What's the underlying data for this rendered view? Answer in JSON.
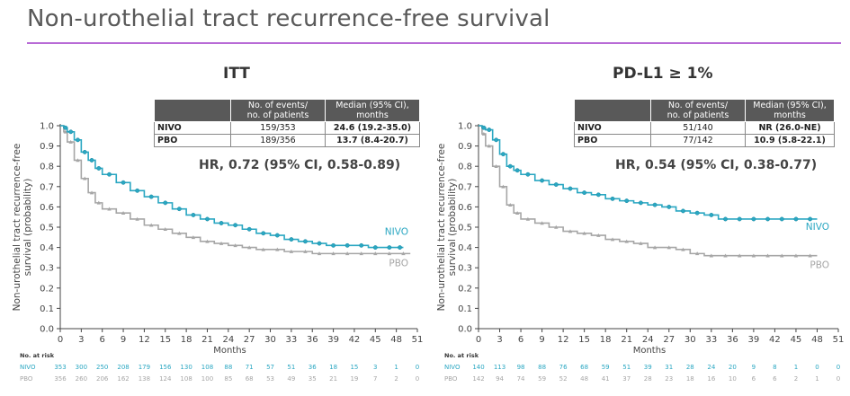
{
  "title": "Non-urothelial tract recurrence-free survival",
  "colors": {
    "nivo": "#2aa7c2",
    "pbo": "#a6a6a6",
    "rule": "#b86bd6"
  },
  "table_headers": {
    "col1": "No. of events/\nno. of patients",
    "col2": "Median (95% CI),\nmonths"
  },
  "panels": [
    {
      "title": "ITT",
      "hr_text": "HR, 0.72 (95% CI, 0.58-0.89)",
      "table": [
        {
          "arm": "NIVO",
          "events": "159/353",
          "median": "24.6 (19.2-35.0)"
        },
        {
          "arm": "PBO",
          "events": "189/356",
          "median": "13.7 (8.4-20.7)"
        }
      ]
    },
    {
      "title": "PD-L1 ≥ 1%",
      "hr_text": "HR, 0.54 (95% CI, 0.38-0.77)",
      "table": [
        {
          "arm": "NIVO",
          "events": "51/140",
          "median": "NR (26.0-NE)"
        },
        {
          "arm": "PBO",
          "events": "77/142",
          "median": "10.9 (5.8-22.1)"
        }
      ]
    }
  ],
  "chart_data": [
    {
      "type": "line",
      "ylabel": "Non-urothelial tract recurrence-free\nsurvival (probability)",
      "xlabel": "Months",
      "xlim": [
        0,
        51
      ],
      "ylim": [
        0,
        1.0
      ],
      "xticks": [
        0,
        3,
        6,
        9,
        12,
        15,
        18,
        21,
        24,
        27,
        30,
        33,
        36,
        39,
        42,
        45,
        48,
        51
      ],
      "yticks": [
        "0.0",
        "0.1",
        "0.2",
        "0.3",
        "0.4",
        "0.5",
        "0.6",
        "0.7",
        "0.8",
        "0.9",
        "1.0"
      ],
      "series": [
        {
          "name": "NIVO",
          "x": [
            0,
            0.5,
            1,
            2,
            3,
            4,
            5,
            6,
            8,
            10,
            12,
            14,
            16,
            18,
            20,
            22,
            24,
            26,
            28,
            30,
            32,
            34,
            36,
            38,
            40,
            42,
            44,
            46,
            48,
            49
          ],
          "y": [
            1.0,
            0.99,
            0.97,
            0.93,
            0.87,
            0.83,
            0.79,
            0.76,
            0.72,
            0.68,
            0.65,
            0.62,
            0.59,
            0.56,
            0.54,
            0.52,
            0.51,
            0.49,
            0.47,
            0.46,
            0.44,
            0.43,
            0.42,
            0.41,
            0.41,
            0.41,
            0.4,
            0.4,
            0.4,
            0.4
          ]
        },
        {
          "name": "PBO",
          "x": [
            0,
            0.5,
            1,
            2,
            3,
            4,
            5,
            6,
            8,
            10,
            12,
            14,
            16,
            18,
            20,
            22,
            24,
            26,
            28,
            30,
            32,
            34,
            36,
            38,
            40,
            42,
            44,
            46,
            48,
            50
          ],
          "y": [
            1.0,
            0.97,
            0.92,
            0.83,
            0.74,
            0.67,
            0.62,
            0.59,
            0.57,
            0.54,
            0.51,
            0.49,
            0.47,
            0.45,
            0.43,
            0.42,
            0.41,
            0.4,
            0.39,
            0.39,
            0.38,
            0.38,
            0.37,
            0.37,
            0.37,
            0.37,
            0.37,
            0.37,
            0.37,
            0.37
          ]
        }
      ],
      "at_risk": {
        "label": "No. at risk",
        "rows": [
          {
            "name": "NIVO",
            "values": [
              "353",
              "300",
              "250",
              "208",
              "179",
              "156",
              "130",
              "108",
              "88",
              "71",
              "57",
              "51",
              "36",
              "18",
              "15",
              "3",
              "1",
              "0"
            ]
          },
          {
            "name": "PBO",
            "values": [
              "356",
              "260",
              "206",
              "162",
              "138",
              "124",
              "108",
              "100",
              "85",
              "68",
              "53",
              "49",
              "35",
              "21",
              "19",
              "7",
              "2",
              "0"
            ]
          }
        ]
      }
    },
    {
      "type": "line",
      "ylabel": "Non-urothelial tract recurrence-free\nsurvival (probability)",
      "xlabel": "Months",
      "xlim": [
        0,
        51
      ],
      "ylim": [
        0,
        1.0
      ],
      "xticks": [
        0,
        3,
        6,
        9,
        12,
        15,
        18,
        21,
        24,
        27,
        30,
        33,
        36,
        39,
        42,
        45,
        48,
        51
      ],
      "yticks": [
        "0.0",
        "0.1",
        "0.2",
        "0.3",
        "0.4",
        "0.5",
        "0.6",
        "0.7",
        "0.8",
        "0.9",
        "1.0"
      ],
      "series": [
        {
          "name": "NIVO",
          "x": [
            0,
            0.5,
            1,
            2,
            3,
            4,
            5,
            6,
            8,
            10,
            12,
            14,
            16,
            18,
            20,
            22,
            24,
            26,
            28,
            30,
            32,
            34,
            36,
            38,
            40,
            42,
            44,
            46,
            48
          ],
          "y": [
            1.0,
            0.99,
            0.98,
            0.93,
            0.86,
            0.8,
            0.78,
            0.76,
            0.73,
            0.71,
            0.69,
            0.67,
            0.66,
            0.64,
            0.63,
            0.62,
            0.61,
            0.6,
            0.58,
            0.57,
            0.56,
            0.54,
            0.54,
            0.54,
            0.54,
            0.54,
            0.54,
            0.54,
            0.54
          ]
        },
        {
          "name": "PBO",
          "x": [
            0,
            0.5,
            1,
            2,
            3,
            4,
            5,
            6,
            8,
            10,
            12,
            14,
            16,
            18,
            20,
            22,
            24,
            26,
            28,
            30,
            32,
            34,
            36,
            38,
            40,
            42,
            44,
            46,
            48
          ],
          "y": [
            1.0,
            0.96,
            0.9,
            0.8,
            0.7,
            0.61,
            0.57,
            0.54,
            0.52,
            0.5,
            0.48,
            0.47,
            0.46,
            0.44,
            0.43,
            0.42,
            0.4,
            0.4,
            0.39,
            0.37,
            0.36,
            0.36,
            0.36,
            0.36,
            0.36,
            0.36,
            0.36,
            0.36,
            0.36
          ]
        }
      ],
      "at_risk": {
        "label": "No. at risk",
        "rows": [
          {
            "name": "NIVO",
            "values": [
              "140",
              "113",
              "98",
              "88",
              "76",
              "68",
              "59",
              "51",
              "39",
              "31",
              "28",
              "24",
              "20",
              "9",
              "8",
              "1",
              "0",
              "0"
            ]
          },
          {
            "name": "PBO",
            "values": [
              "142",
              "94",
              "74",
              "59",
              "52",
              "48",
              "41",
              "37",
              "28",
              "23",
              "18",
              "16",
              "10",
              "6",
              "6",
              "2",
              "1",
              "0"
            ]
          }
        ]
      }
    }
  ]
}
